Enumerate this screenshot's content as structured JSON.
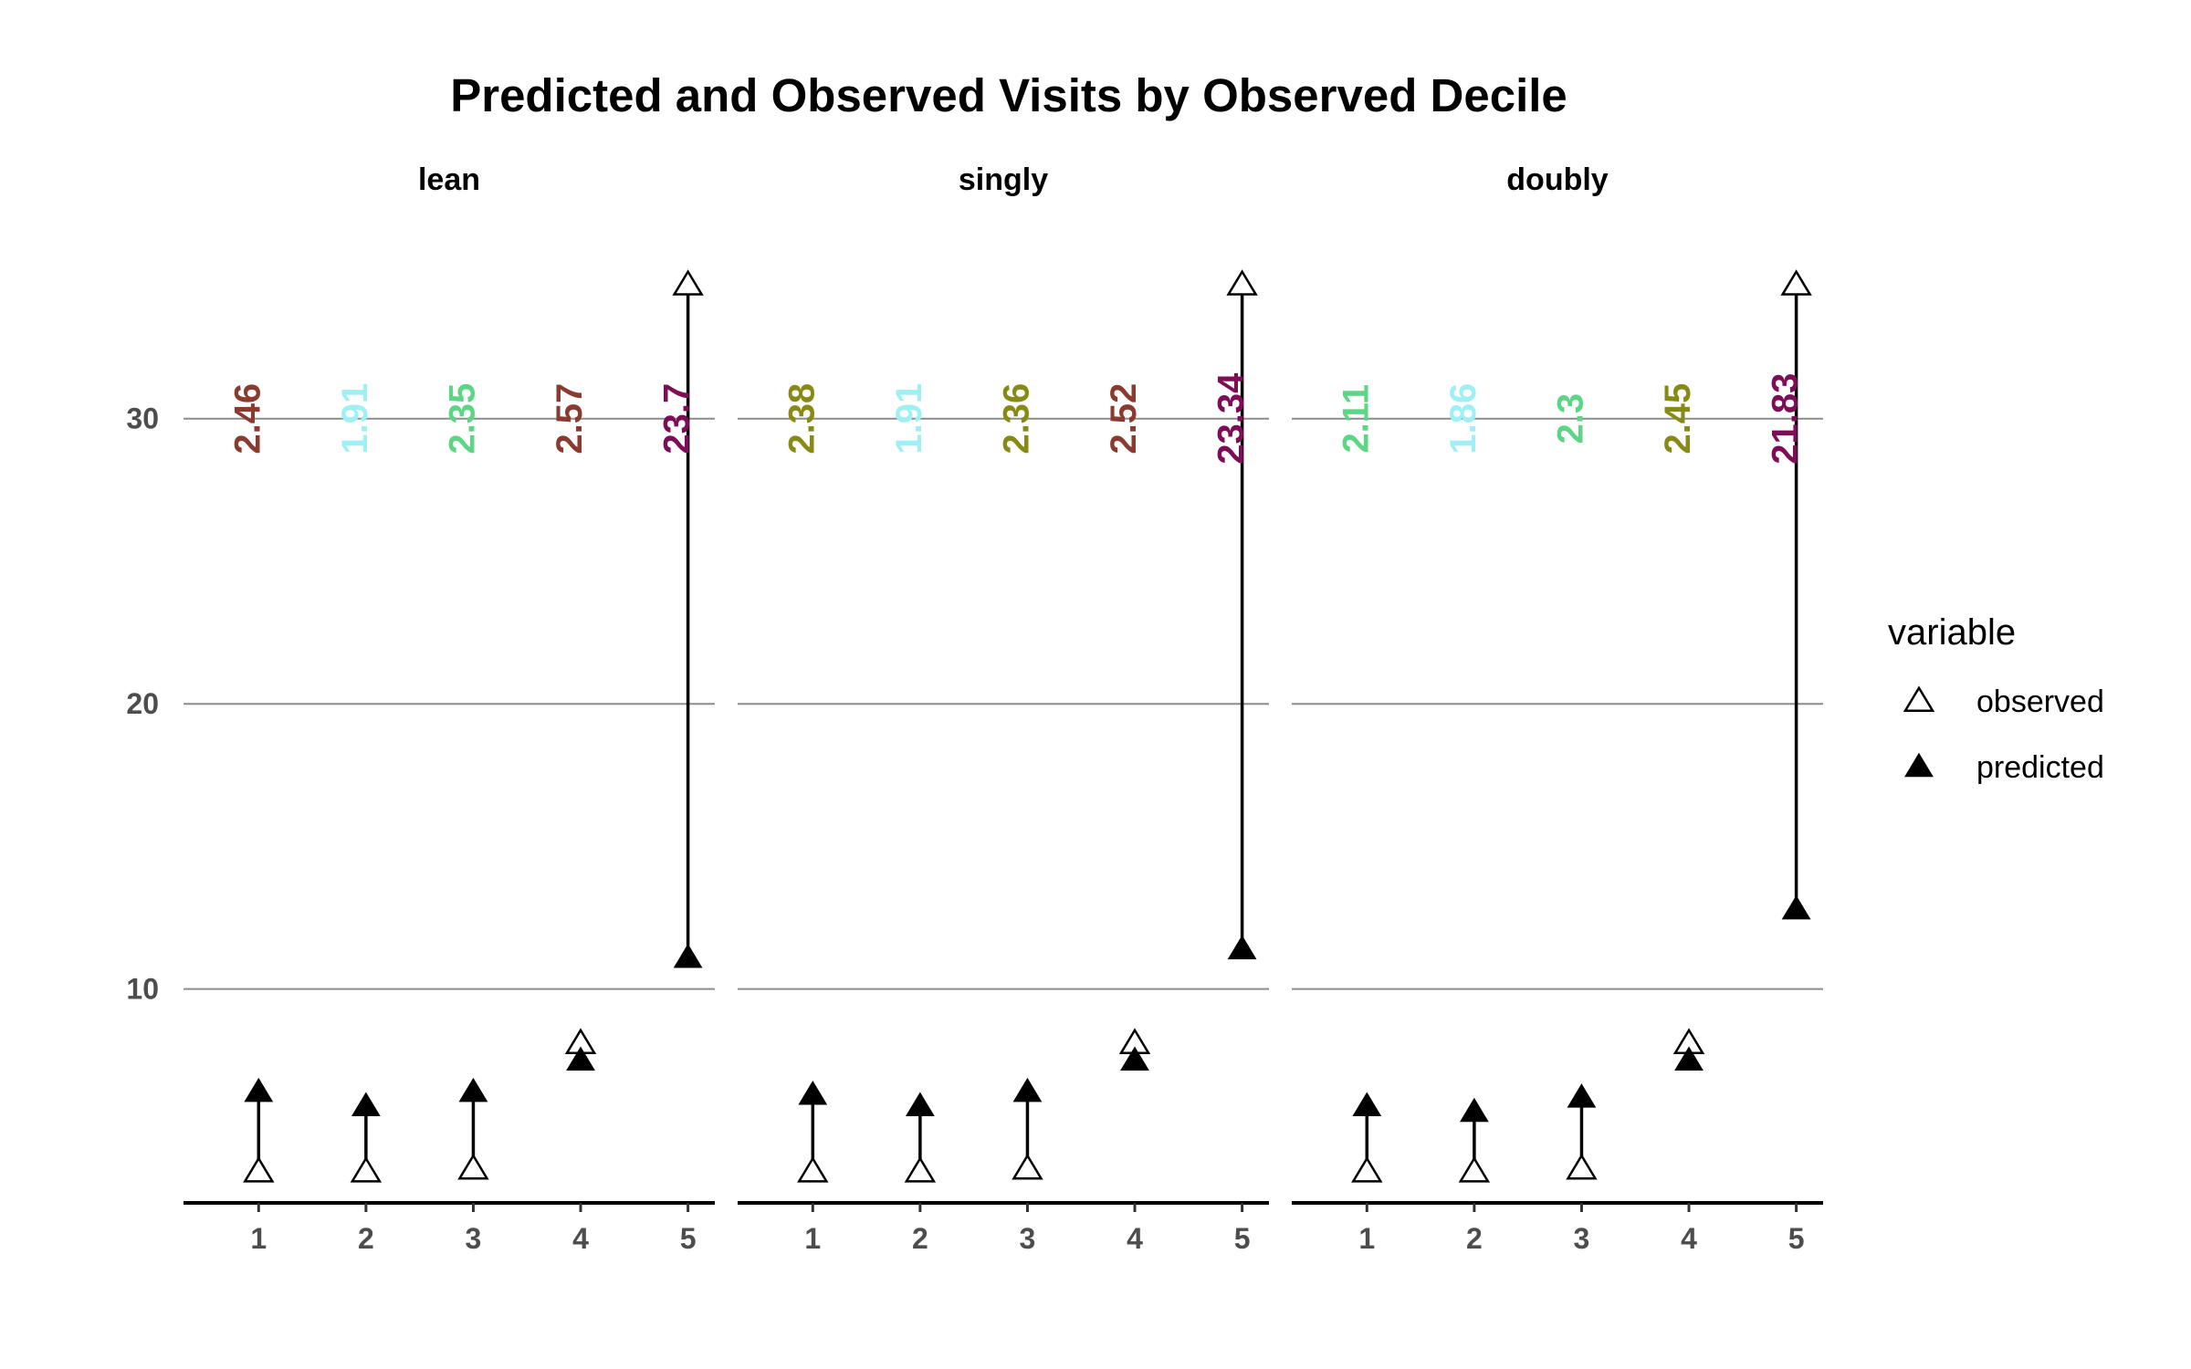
{
  "chart_data": {
    "type": "scatter",
    "title": "Predicted and Observed Visits by Observed Decile",
    "xlabel": "",
    "ylabel": "",
    "x_ticks": [
      "1",
      "2",
      "3",
      "4",
      "5"
    ],
    "y_ticks": [
      "10",
      "20",
      "30"
    ],
    "xlim": [
      0.3,
      5.25
    ],
    "ylim": [
      2.5,
      37
    ],
    "grid": "horizontal",
    "legend": {
      "title": "variable",
      "position": "right",
      "entries": [
        {
          "label": "observed",
          "shape": "open-triangle"
        },
        {
          "label": "predicted",
          "shape": "filled-triangle"
        }
      ]
    },
    "panels": [
      {
        "name": "lean",
        "x": [
          1,
          2,
          3,
          4,
          5
        ],
        "observed": [
          3.6,
          3.6,
          3.7,
          8.1,
          34.7
        ],
        "predicted": [
          6.4,
          5.9,
          6.4,
          7.5,
          11.1
        ],
        "labels": [
          "2.46",
          "1.91",
          "2.35",
          "2.57",
          "23.7"
        ],
        "label_colors": [
          "#8b3a2f",
          "#9ff0f4",
          "#5cd685",
          "#8b3a2f",
          "#7d0d57"
        ]
      },
      {
        "name": "singly",
        "x": [
          1,
          2,
          3,
          4,
          5
        ],
        "observed": [
          3.6,
          3.6,
          3.7,
          8.1,
          34.7
        ],
        "predicted": [
          6.3,
          5.9,
          6.4,
          7.5,
          11.4
        ],
        "labels": [
          "2.38",
          "1.91",
          "2.36",
          "2.52",
          "23.34"
        ],
        "label_colors": [
          "#888a16",
          "#9ff0f4",
          "#888a16",
          "#8b3a2f",
          "#7d0d57"
        ]
      },
      {
        "name": "doubly",
        "x": [
          1,
          2,
          3,
          4,
          5
        ],
        "observed": [
          3.6,
          3.6,
          3.7,
          8.1,
          34.7
        ],
        "predicted": [
          5.9,
          5.7,
          6.2,
          7.5,
          12.8
        ],
        "labels": [
          "2.11",
          "1.86",
          "2.3",
          "2.45",
          "21.83"
        ],
        "label_colors": [
          "#5cd685",
          "#9ff0f4",
          "#5cd685",
          "#888a16",
          "#7d0d57"
        ]
      }
    ],
    "label_y": 30
  }
}
